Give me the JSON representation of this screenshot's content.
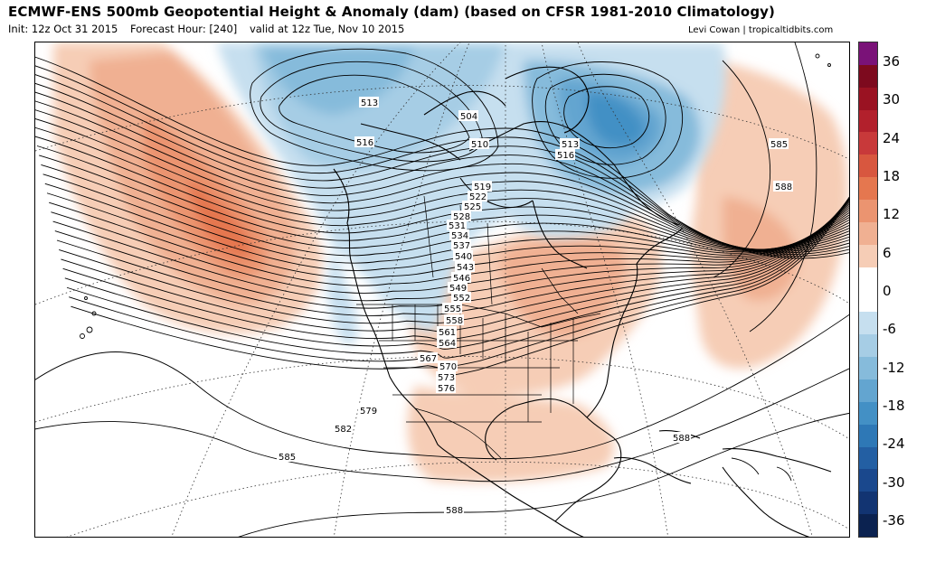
{
  "header": {
    "title": "ECMWF-ENS 500mb Geopotential Height & Anomaly (dam) (based on CFSR 1981-2010 Climatology)",
    "init": "Init: 12z Oct 31 2015",
    "forecast_hour": "Forecast Hour: [240]",
    "valid": "valid at 12z Tue, Nov 10 2015",
    "credit": "Levi Cowan | tropicaltidbits.com"
  },
  "colorbar": {
    "ticks": [
      "36",
      "30",
      "24",
      "18",
      "12",
      "6",
      "0",
      "-6",
      "-12",
      "-18",
      "-24",
      "-30",
      "-36"
    ],
    "colors_top_to_bottom": [
      "#7a1278",
      "#7d0a1e",
      "#9a1222",
      "#b2202c",
      "#c8393a",
      "#d8573f",
      "#e5774f",
      "#eb9470",
      "#f0b092",
      "#f6cdb6",
      "#ffffff",
      "#ffffff",
      "#c6dfef",
      "#a6cde5",
      "#86bbdb",
      "#63a5d0",
      "#4390c5",
      "#2e78b6",
      "#235fa3",
      "#1a488d",
      "#123472",
      "#0b2250"
    ]
  },
  "map": {
    "contour_labels": {
      "c504": "504",
      "c510": "510",
      "c513a": "513",
      "c513b": "513",
      "c516a": "516",
      "c516b": "516",
      "c519": "519",
      "c522": "522",
      "c525": "525",
      "c528": "528",
      "c531": "531",
      "c534": "534",
      "c537": "537",
      "c540": "540",
      "c543": "543",
      "c546": "546",
      "c549": "549",
      "c552": "552",
      "c555": "555",
      "c558": "558",
      "c561": "561",
      "c564": "564",
      "c567": "567",
      "c570": "570",
      "c573": "573",
      "c576": "576",
      "c579": "579",
      "c582": "582",
      "c585a": "585",
      "c585b": "585",
      "c588a": "588",
      "c588b": "588",
      "c588c": "588"
    }
  }
}
